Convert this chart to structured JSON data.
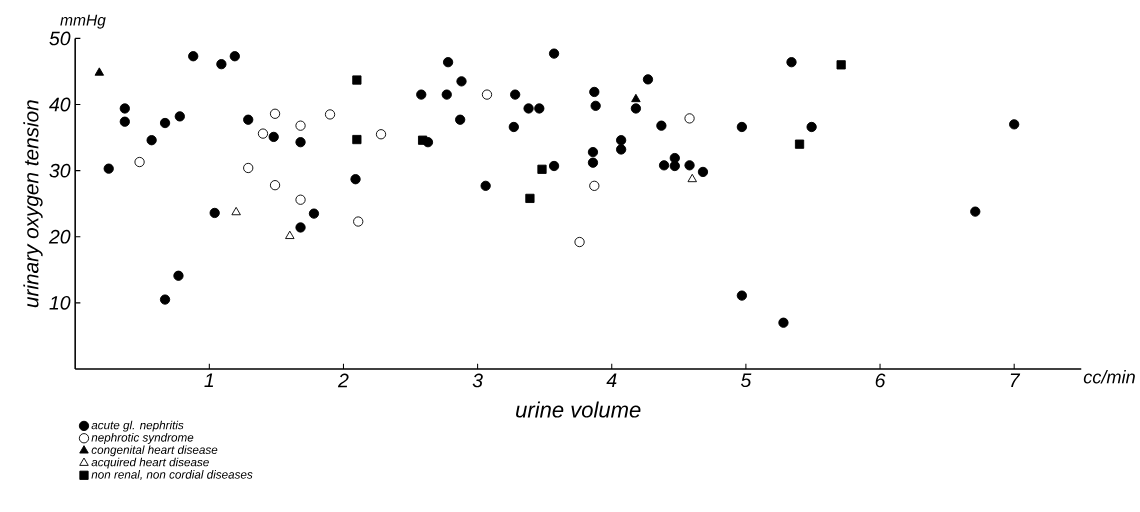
{
  "chart_data": {
    "type": "scatter",
    "xlabel": "urine volume",
    "ylabel": "urinary oxygen tension",
    "annotations": [
      "mmHg",
      "cc/min"
    ],
    "xlim": [
      0,
      7.5
    ],
    "ylim": [
      0,
      50
    ],
    "xticks": [
      1,
      2,
      3,
      4,
      5,
      6,
      7
    ],
    "yticks": [
      10,
      20,
      30,
      40,
      50
    ],
    "grid": false,
    "legend": "bottom left",
    "series": [
      {
        "name": "acute gl. nephritis",
        "color": "#000000",
        "marker": "circle",
        "x": [
          0.25,
          0.37,
          0.37,
          0.57,
          0.67,
          0.67,
          0.77,
          0.78,
          0.88,
          1.09,
          1.19,
          1.04,
          1.29,
          1.48,
          1.68,
          1.68,
          1.78,
          2.09,
          2.78,
          3.57,
          2.58,
          2.77,
          2.88,
          2.87,
          2.63,
          3.06,
          3.28,
          3.27,
          3.38,
          3.46,
          3.57,
          3.87,
          3.88,
          3.86,
          3.86,
          4.07,
          4.07,
          4.18,
          4.27,
          4.37,
          4.39,
          4.47,
          4.47,
          4.58,
          4.68,
          4.97,
          4.97,
          5.28,
          5.34,
          5.49,
          7.0,
          6.71
        ],
        "values": [
          30.3,
          39.4,
          37.4,
          34.6,
          37.2,
          10.5,
          14.1,
          38.2,
          47.3,
          46.1,
          47.3,
          23.6,
          37.7,
          35.1,
          34.3,
          21.4,
          23.5,
          28.7,
          46.4,
          47.7,
          41.5,
          41.5,
          43.5,
          37.7,
          34.3,
          27.7,
          41.5,
          36.6,
          39.4,
          39.4,
          30.7,
          41.9,
          39.8,
          32.8,
          31.2,
          34.6,
          33.2,
          39.4,
          43.8,
          36.8,
          30.8,
          31.9,
          30.7,
          30.8,
          29.8,
          36.6,
          11.1,
          7.0,
          46.4,
          36.6,
          37.0,
          23.8
        ]
      },
      {
        "name": "nephrotic syndrome",
        "color": "#ffffff",
        "marker": "circle",
        "x": [
          0.48,
          1.29,
          1.4,
          1.49,
          1.49,
          1.68,
          1.68,
          1.9,
          2.11,
          2.28,
          3.07,
          3.87,
          3.76,
          4.58
        ],
        "values": [
          31.3,
          30.4,
          35.6,
          38.6,
          27.8,
          36.8,
          25.6,
          38.5,
          22.3,
          35.5,
          41.5,
          27.7,
          19.2,
          37.9
        ]
      },
      {
        "name": "congenital heart disease",
        "color": "#000000",
        "marker": "triangle",
        "x": [
          0.18,
          4.18
        ],
        "values": [
          44.8,
          40.8
        ]
      },
      {
        "name": "acquired heart disease",
        "color": "#ffffff",
        "marker": "triangle",
        "x": [
          1.2,
          1.6,
          4.6
        ],
        "values": [
          23.7,
          20.1,
          28.7
        ]
      },
      {
        "name": "non renal, non cordial diseases",
        "color": "#000000",
        "marker": "square",
        "x": [
          2.1,
          2.1,
          2.59,
          3.48,
          3.39,
          5.71,
          5.4
        ],
        "values": [
          43.7,
          34.7,
          34.6,
          30.2,
          25.8,
          46.0,
          34.0
        ]
      }
    ]
  }
}
